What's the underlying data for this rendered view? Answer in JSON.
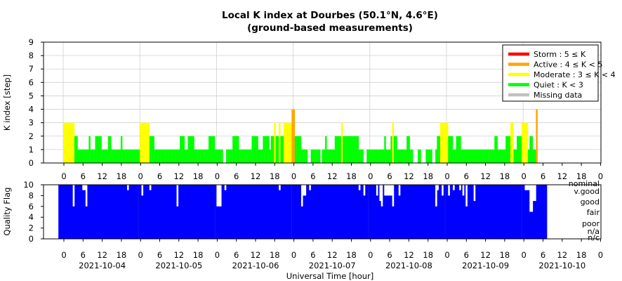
{
  "chart_data": [
    {
      "type": "bar",
      "title": "Local K index at Dourbes (50.1°N, 4.6°E)",
      "subtitle": "(ground-based measurements)",
      "ylabel": "K index [step]",
      "ylim": [
        0,
        9
      ],
      "yticks": [
        0,
        1,
        2,
        3,
        4,
        5,
        6,
        7,
        8,
        9
      ],
      "xtick_labels": [
        "0",
        "6",
        "12",
        "18",
        "0",
        "6",
        "12",
        "18",
        "0",
        "6",
        "12",
        "18",
        "0",
        "6",
        "12",
        "18",
        "0",
        "6",
        "12",
        "18",
        "0",
        "6",
        "12",
        "18",
        "0",
        "6",
        "12",
        "18",
        "0"
      ],
      "grid": true,
      "legend_position": "top-right",
      "legend": [
        {
          "label": "Storm : 5 ≤ K",
          "color": "#ff0000"
        },
        {
          "label": "Active : 4 ≤ K < 5",
          "color": "#ffa500"
        },
        {
          "label": "Moderate : 3 ≤ K < 4",
          "color": "#ffff00"
        },
        {
          "label": "Quiet : K < 3",
          "color": "#00ff00"
        },
        {
          "label": "Missing data",
          "color": "#c0c0c0"
        }
      ],
      "x_unit": "hours since 2021-10-04 00:00 UT",
      "bar_width_hours": 0.5,
      "points": [
        [
          0.0,
          3
        ],
        [
          0.5,
          3
        ],
        [
          1.0,
          3
        ],
        [
          1.5,
          3
        ],
        [
          2.0,
          3
        ],
        [
          2.5,
          3
        ],
        [
          3.0,
          3
        ],
        [
          3.5,
          2
        ],
        [
          4.0,
          2
        ],
        [
          4.5,
          1
        ],
        [
          5.0,
          1
        ],
        [
          5.5,
          1
        ],
        [
          6.0,
          1
        ],
        [
          6.5,
          1
        ],
        [
          7.0,
          1
        ],
        [
          7.5,
          1
        ],
        [
          8.0,
          2
        ],
        [
          8.5,
          1
        ],
        [
          9.0,
          1
        ],
        [
          9.5,
          1
        ],
        [
          10.0,
          2
        ],
        [
          10.5,
          2
        ],
        [
          11.0,
          2
        ],
        [
          11.5,
          2
        ],
        [
          12.0,
          1
        ],
        [
          12.5,
          1
        ],
        [
          13.0,
          1
        ],
        [
          13.5,
          1
        ],
        [
          14.0,
          2
        ],
        [
          14.5,
          2
        ],
        [
          15.0,
          1
        ],
        [
          15.5,
          1
        ],
        [
          16.0,
          1
        ],
        [
          16.5,
          1
        ],
        [
          17.0,
          1
        ],
        [
          17.5,
          1
        ],
        [
          18.0,
          2
        ],
        [
          18.5,
          1
        ],
        [
          19.0,
          1
        ],
        [
          19.5,
          1
        ],
        [
          20.0,
          1
        ],
        [
          20.5,
          1
        ],
        [
          21.0,
          1
        ],
        [
          21.5,
          1
        ],
        [
          22.0,
          1
        ],
        [
          22.5,
          1
        ],
        [
          23.0,
          1
        ],
        [
          23.5,
          1
        ],
        [
          24.0,
          3
        ],
        [
          24.5,
          3
        ],
        [
          25.0,
          3
        ],
        [
          25.5,
          3
        ],
        [
          26.0,
          3
        ],
        [
          26.5,
          3
        ],
        [
          27.0,
          2
        ],
        [
          27.5,
          2
        ],
        [
          28.0,
          2
        ],
        [
          28.5,
          1
        ],
        [
          29.0,
          1
        ],
        [
          29.5,
          1
        ],
        [
          30.0,
          1
        ],
        [
          30.5,
          1
        ],
        [
          31.0,
          1
        ],
        [
          31.5,
          1
        ],
        [
          32.0,
          1
        ],
        [
          32.5,
          1
        ],
        [
          33.0,
          1
        ],
        [
          33.5,
          1
        ],
        [
          34.0,
          1
        ],
        [
          34.5,
          1
        ],
        [
          35.0,
          1
        ],
        [
          35.5,
          1
        ],
        [
          36.0,
          1
        ],
        [
          36.5,
          2
        ],
        [
          37.0,
          2
        ],
        [
          37.5,
          2
        ],
        [
          38.0,
          1
        ],
        [
          38.5,
          1
        ],
        [
          39.0,
          2
        ],
        [
          39.5,
          2
        ],
        [
          40.0,
          2
        ],
        [
          40.5,
          2
        ],
        [
          41.0,
          1
        ],
        [
          41.5,
          1
        ],
        [
          42.0,
          1
        ],
        [
          42.5,
          1
        ],
        [
          43.0,
          1
        ],
        [
          43.5,
          1
        ],
        [
          44.0,
          1
        ],
        [
          44.5,
          1
        ],
        [
          45.0,
          1
        ],
        [
          45.5,
          2
        ],
        [
          46.0,
          2
        ],
        [
          46.5,
          2
        ],
        [
          47.0,
          2
        ],
        [
          47.5,
          1
        ],
        [
          48.0,
          1
        ],
        [
          48.5,
          1
        ],
        [
          49.0,
          1
        ],
        [
          49.5,
          1
        ],
        [
          51.0,
          1
        ],
        [
          51.5,
          1
        ],
        [
          52.0,
          1
        ],
        [
          52.5,
          1
        ],
        [
          53.0,
          2
        ],
        [
          53.5,
          2
        ],
        [
          54.0,
          2
        ],
        [
          54.5,
          2
        ],
        [
          55.0,
          1
        ],
        [
          55.5,
          1
        ],
        [
          56.0,
          1
        ],
        [
          56.5,
          1
        ],
        [
          57.0,
          1
        ],
        [
          57.5,
          1
        ],
        [
          58.0,
          1
        ],
        [
          58.5,
          1
        ],
        [
          59.0,
          2
        ],
        [
          59.5,
          2
        ],
        [
          60.0,
          2
        ],
        [
          60.5,
          2
        ],
        [
          61.0,
          1
        ],
        [
          61.5,
          1
        ],
        [
          62.0,
          1
        ],
        [
          62.5,
          2
        ],
        [
          63.0,
          2
        ],
        [
          63.5,
          2
        ],
        [
          64.0,
          2
        ],
        [
          64.5,
          1
        ],
        [
          65.0,
          2
        ],
        [
          65.5,
          2
        ],
        [
          66.0,
          3
        ],
        [
          66.5,
          2
        ],
        [
          67.0,
          2
        ],
        [
          67.5,
          3
        ],
        [
          68.0,
          2
        ],
        [
          68.5,
          2
        ],
        [
          69.0,
          3
        ],
        [
          69.5,
          3
        ],
        [
          70.0,
          3
        ],
        [
          70.5,
          3
        ],
        [
          71.0,
          3
        ],
        [
          71.5,
          4
        ],
        [
          72.0,
          4
        ],
        [
          72.5,
          2
        ],
        [
          73.0,
          2
        ],
        [
          73.5,
          2
        ],
        [
          74.0,
          2
        ],
        [
          74.5,
          1
        ],
        [
          75.0,
          1
        ],
        [
          75.5,
          1
        ],
        [
          76.0,
          1
        ],
        [
          77.5,
          1
        ],
        [
          78.0,
          1
        ],
        [
          78.5,
          1
        ],
        [
          79.0,
          1
        ],
        [
          79.5,
          1
        ],
        [
          80.0,
          1
        ],
        [
          81.0,
          1
        ],
        [
          81.5,
          1
        ],
        [
          82.0,
          2
        ],
        [
          82.5,
          1
        ],
        [
          83.0,
          1
        ],
        [
          83.5,
          1
        ],
        [
          84.0,
          1
        ],
        [
          84.5,
          1
        ],
        [
          85.0,
          2
        ],
        [
          85.5,
          2
        ],
        [
          86.0,
          2
        ],
        [
          86.5,
          2
        ],
        [
          87.0,
          3
        ],
        [
          87.5,
          2
        ],
        [
          88.0,
          2
        ],
        [
          88.5,
          2
        ],
        [
          89.0,
          2
        ],
        [
          89.5,
          2
        ],
        [
          90.0,
          2
        ],
        [
          90.5,
          2
        ],
        [
          91.0,
          2
        ],
        [
          91.5,
          2
        ],
        [
          92.0,
          2
        ],
        [
          92.5,
          1
        ],
        [
          93.0,
          1
        ],
        [
          93.5,
          1
        ],
        [
          95.0,
          1
        ],
        [
          95.5,
          1
        ],
        [
          96.0,
          1
        ],
        [
          96.5,
          1
        ],
        [
          97.0,
          1
        ],
        [
          97.5,
          1
        ],
        [
          98.0,
          1
        ],
        [
          98.5,
          1
        ],
        [
          99.0,
          1
        ],
        [
          99.5,
          1
        ],
        [
          100.0,
          1
        ],
        [
          100.5,
          2
        ],
        [
          101.0,
          1
        ],
        [
          101.5,
          1
        ],
        [
          102.0,
          1
        ],
        [
          102.5,
          2
        ],
        [
          103.0,
          3
        ],
        [
          103.5,
          2
        ],
        [
          104.0,
          2
        ],
        [
          104.5,
          1
        ],
        [
          105.0,
          1
        ],
        [
          105.5,
          1
        ],
        [
          106.0,
          1
        ],
        [
          106.5,
          1
        ],
        [
          107.0,
          1
        ],
        [
          107.5,
          2
        ],
        [
          108.0,
          2
        ],
        [
          108.5,
          1
        ],
        [
          109.0,
          1
        ],
        [
          111.0,
          1
        ],
        [
          111.5,
          1
        ],
        [
          113.5,
          1
        ],
        [
          114.0,
          1
        ],
        [
          114.5,
          1
        ],
        [
          115.0,
          1
        ],
        [
          116.5,
          1
        ],
        [
          117.0,
          2
        ],
        [
          117.5,
          2
        ],
        [
          118.0,
          3
        ],
        [
          118.5,
          3
        ],
        [
          119.0,
          3
        ],
        [
          119.5,
          3
        ],
        [
          120.0,
          3
        ],
        [
          120.5,
          2
        ],
        [
          121.0,
          2
        ],
        [
          121.5,
          2
        ],
        [
          122.0,
          1
        ],
        [
          122.5,
          1
        ],
        [
          123.0,
          2
        ],
        [
          123.5,
          2
        ],
        [
          124.0,
          2
        ],
        [
          124.5,
          1
        ],
        [
          125.0,
          1
        ],
        [
          125.5,
          1
        ],
        [
          126.0,
          1
        ],
        [
          126.5,
          1
        ],
        [
          127.0,
          1
        ],
        [
          127.5,
          1
        ],
        [
          128.0,
          1
        ],
        [
          128.5,
          1
        ],
        [
          129.0,
          1
        ],
        [
          129.5,
          1
        ],
        [
          130.0,
          1
        ],
        [
          130.5,
          1
        ],
        [
          131.0,
          1
        ],
        [
          131.5,
          1
        ],
        [
          132.0,
          1
        ],
        [
          132.5,
          1
        ],
        [
          133.0,
          1
        ],
        [
          133.5,
          1
        ],
        [
          134.0,
          1
        ],
        [
          134.5,
          1
        ],
        [
          135.0,
          2
        ],
        [
          135.5,
          2
        ],
        [
          136.0,
          1
        ],
        [
          136.5,
          1
        ],
        [
          137.0,
          1
        ],
        [
          137.5,
          1
        ],
        [
          138.0,
          1
        ],
        [
          138.5,
          2
        ],
        [
          139.0,
          2
        ],
        [
          139.5,
          2
        ],
        [
          140.0,
          3
        ],
        [
          140.5,
          3
        ],
        [
          141.0,
          1
        ],
        [
          141.5,
          1
        ],
        [
          142.0,
          2
        ],
        [
          142.5,
          2
        ],
        [
          143.0,
          2
        ],
        [
          143.5,
          3
        ],
        [
          144.0,
          3
        ],
        [
          144.5,
          3
        ],
        [
          145.0,
          3
        ],
        [
          145.5,
          1
        ],
        [
          146.0,
          2
        ],
        [
          146.5,
          2
        ],
        [
          147.0,
          1
        ],
        [
          147.5,
          1
        ],
        [
          148.0,
          4
        ]
      ]
    },
    {
      "type": "heatmap",
      "ylabel": "Quality Flag",
      "xlabel": "Universal Time [hour]",
      "ylim": [
        0,
        10
      ],
      "yticks": [
        0,
        2,
        4,
        6,
        8,
        10
      ],
      "xtick_labels": [
        "0",
        "6",
        "12",
        "18",
        "0",
        "6",
        "12",
        "18",
        "0",
        "6",
        "12",
        "18",
        "0",
        "6",
        "12",
        "18",
        "0",
        "6",
        "12",
        "18",
        "0",
        "6",
        "12",
        "18",
        "0",
        "6",
        "12",
        "18",
        "0"
      ],
      "dates": [
        "2021-10-04",
        "2021-10-05",
        "2021-10-06",
        "2021-10-07",
        "2021-10-08",
        "2021-10-09",
        "2021-10-10"
      ],
      "quality_labels": [
        "nominal",
        "v.good",
        "good",
        "fair",
        "poor",
        "n/a",
        "n/c"
      ],
      "fill_color": "#0000ff",
      "x_unit": "hours since 2021-10-04 00:00 UT",
      "gaps": [
        [
          0.0,
          0.5,
          10,
          10
        ],
        [
          3.0,
          3.5,
          6,
          10
        ],
        [
          6.0,
          7.0,
          9,
          10
        ],
        [
          7.0,
          7.5,
          6,
          10
        ],
        [
          20.0,
          20.5,
          9,
          10
        ],
        [
          24.5,
          25.0,
          8,
          10
        ],
        [
          27.0,
          27.5,
          9,
          10
        ],
        [
          35.5,
          36.0,
          6,
          10
        ],
        [
          48.0,
          49.5,
          6,
          10
        ],
        [
          50.5,
          51.0,
          9,
          10
        ],
        [
          67.5,
          68.0,
          9,
          10
        ],
        [
          74.5,
          75.0,
          6,
          10
        ],
        [
          75.0,
          76.0,
          8,
          10
        ],
        [
          77.0,
          77.5,
          9,
          10
        ],
        [
          92.5,
          93.0,
          9,
          10
        ],
        [
          94.0,
          94.5,
          8,
          10
        ],
        [
          98.0,
          98.5,
          8,
          10
        ],
        [
          99.0,
          99.5,
          7,
          10
        ],
        [
          99.5,
          100.0,
          6,
          10
        ],
        [
          100.5,
          101.5,
          8,
          10
        ],
        [
          101.5,
          103.0,
          8,
          10
        ],
        [
          103.0,
          103.5,
          6,
          10
        ],
        [
          105.0,
          105.5,
          8,
          10
        ],
        [
          116.5,
          117.0,
          6,
          10
        ],
        [
          117.0,
          117.5,
          9,
          10
        ],
        [
          118.5,
          119.0,
          8,
          10
        ],
        [
          120.5,
          121.0,
          8,
          10
        ],
        [
          122.0,
          122.5,
          9,
          10
        ],
        [
          124.0,
          124.5,
          9,
          10
        ],
        [
          125.0,
          125.5,
          8,
          10
        ],
        [
          126.0,
          126.5,
          6,
          10
        ],
        [
          128.5,
          129.0,
          7,
          10
        ],
        [
          144.5,
          146.0,
          9,
          10
        ],
        [
          146.0,
          147.0,
          5,
          10
        ],
        [
          147.0,
          148.0,
          7,
          10
        ]
      ]
    }
  ]
}
